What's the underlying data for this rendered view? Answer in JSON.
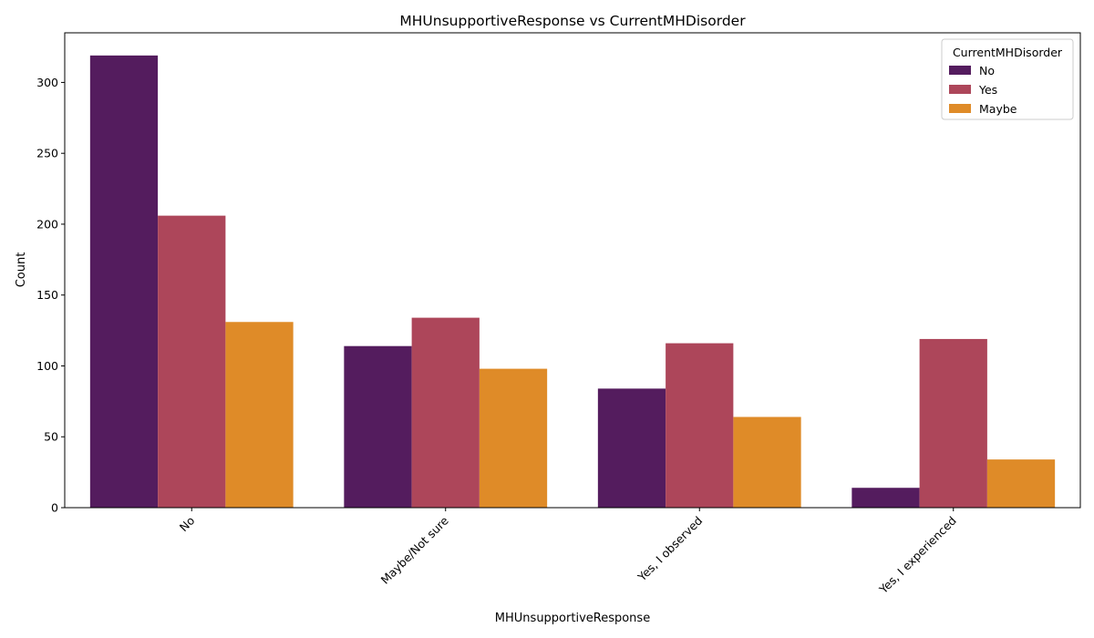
{
  "chart_data": {
    "type": "bar",
    "title": "MHUnsupportiveResponse vs CurrentMHDisorder",
    "xlabel": "MHUnsupportiveResponse",
    "ylabel": "Count",
    "categories": [
      "No",
      "Maybe/Not sure",
      "Yes, I observed",
      "Yes, I experienced"
    ],
    "series": [
      {
        "name": "No",
        "color": "#541c5e",
        "values": [
          319,
          114,
          84,
          14
        ]
      },
      {
        "name": "Yes",
        "color": "#ad465a",
        "values": [
          206,
          134,
          116,
          119
        ]
      },
      {
        "name": "Maybe",
        "color": "#df8b28",
        "values": [
          131,
          98,
          64,
          34
        ]
      }
    ],
    "ylim": [
      0,
      335
    ],
    "yticks": [
      0,
      50,
      100,
      150,
      200,
      250,
      300
    ],
    "legend": {
      "title": "CurrentMHDisorder",
      "placement": "top-right"
    },
    "grid": false
  }
}
